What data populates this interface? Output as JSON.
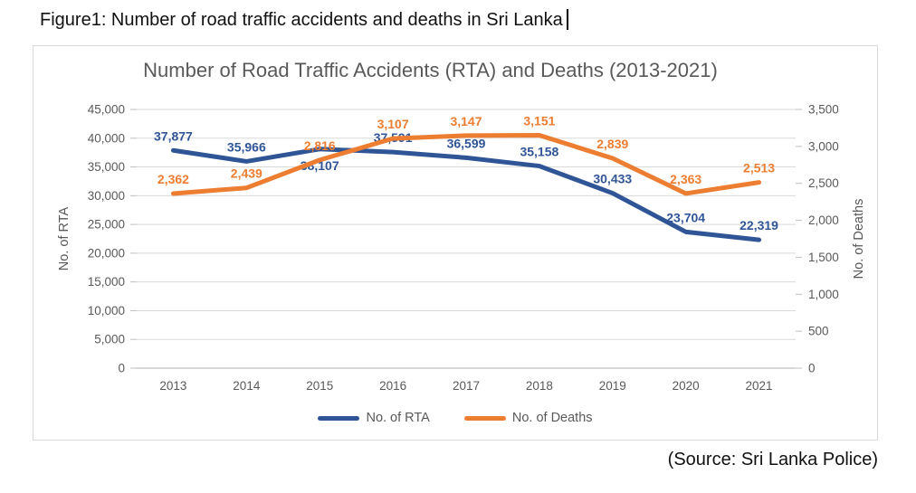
{
  "document": {
    "caption": "Figure1: Number of road traffic accidents and deaths in Sri Lanka",
    "source": "(Source: Sri Lanka Police)"
  },
  "chart_data": {
    "type": "line",
    "title": "Number of Road Traffic Accidents (RTA) and Deaths (2013-2021)",
    "categories": [
      "2013",
      "2014",
      "2015",
      "2016",
      "2017",
      "2018",
      "2019",
      "2020",
      "2021"
    ],
    "series": [
      {
        "name": "No. of RTA",
        "axis": "left",
        "color": "#2F5597",
        "values": [
          37877,
          35966,
          38107,
          37591,
          36599,
          35158,
          30433,
          23704,
          22319
        ],
        "labels": [
          "37,877",
          "35,966",
          "38,107",
          "37,591",
          "36,599",
          "35,158",
          "30,433",
          "23,704",
          "22,319"
        ],
        "label_side": [
          "above",
          "above",
          "below",
          "above",
          "above",
          "above",
          "above",
          "above",
          "above"
        ]
      },
      {
        "name": "No. of Deaths",
        "axis": "right",
        "color": "#ED7D31",
        "values": [
          2362,
          2439,
          2816,
          3107,
          3147,
          3151,
          2839,
          2363,
          2513
        ],
        "labels": [
          "2,362",
          "2,439",
          "2,816",
          "3,107",
          "3,147",
          "3,151",
          "2,839",
          "2,363",
          "2,513"
        ],
        "label_side": [
          "above",
          "above",
          "above",
          "above",
          "above",
          "above",
          "above",
          "above",
          "above"
        ]
      }
    ],
    "axes": {
      "left": {
        "title": "No. of RTA",
        "min": 0,
        "max": 45000,
        "step": 5000,
        "ticks": [
          "0",
          "5,000",
          "10,000",
          "15,000",
          "20,000",
          "25,000",
          "30,000",
          "35,000",
          "40,000",
          "45,000"
        ]
      },
      "right": {
        "title": "No. of Deaths",
        "min": 0,
        "max": 3500,
        "step": 500,
        "ticks": [
          "0",
          "500",
          "1,000",
          "1,500",
          "2,000",
          "2,500",
          "3,000",
          "3,500"
        ]
      }
    },
    "grid": true,
    "legend_position": "bottom"
  },
  "colors": {
    "rta_line": "#2F5597",
    "deaths_line": "#ED7D31",
    "chart_text": "#595959",
    "gridline": "#D9D9D9",
    "axis_line": "#BFBFBF",
    "chart_border": "#D9D9D9"
  }
}
